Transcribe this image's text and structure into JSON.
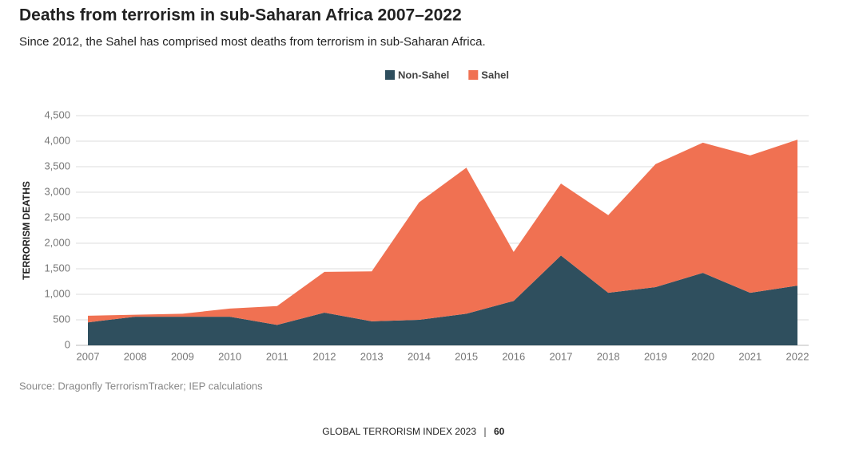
{
  "chart_data": {
    "type": "stacked-area",
    "title": "Deaths from terrorism in sub-Saharan Africa 2007–2022",
    "subtitle": "Since 2012, the Sahel has comprised most deaths from terrorism in sub-Saharan Africa.",
    "y_label": "TERRORISM DEATHS",
    "source": "Source: Dragonfly TerrorismTracker; IEP calculations",
    "footer": {
      "publication": "GLOBAL TERRORISM INDEX 2023",
      "page": "60"
    },
    "categories": [
      "2007",
      "2008",
      "2009",
      "2010",
      "2011",
      "2012",
      "2013",
      "2014",
      "2015",
      "2016",
      "2017",
      "2018",
      "2019",
      "2020",
      "2021",
      "2022"
    ],
    "series": [
      {
        "name": "Non-Sahel",
        "color": "#2f4f5e",
        "values": [
          450,
          560,
          560,
          560,
          400,
          640,
          470,
          500,
          620,
          870,
          1760,
          1030,
          1140,
          1420,
          1030,
          1170
        ]
      },
      {
        "name": "Sahel",
        "color": "#f07152",
        "values": [
          130,
          40,
          60,
          160,
          370,
          800,
          980,
          2300,
          2860,
          960,
          1410,
          1520,
          2410,
          2550,
          2690,
          2860
        ]
      }
    ],
    "ylim": [
      0,
      4500
    ],
    "yticks": [
      0,
      500,
      {
        "value": 1000,
        "label": "1,000"
      },
      {
        "value": 1500,
        "label": "1,500"
      },
      {
        "value": 2000,
        "label": "2,000"
      },
      {
        "value": 2500,
        "label": "2,500"
      },
      {
        "value": 3000,
        "label": "3,000"
      },
      {
        "value": 3500,
        "label": "3,500"
      },
      {
        "value": 4000,
        "label": "4,000"
      },
      {
        "value": 4500,
        "label": "4,500"
      }
    ],
    "grid": true,
    "legend": "top"
  }
}
